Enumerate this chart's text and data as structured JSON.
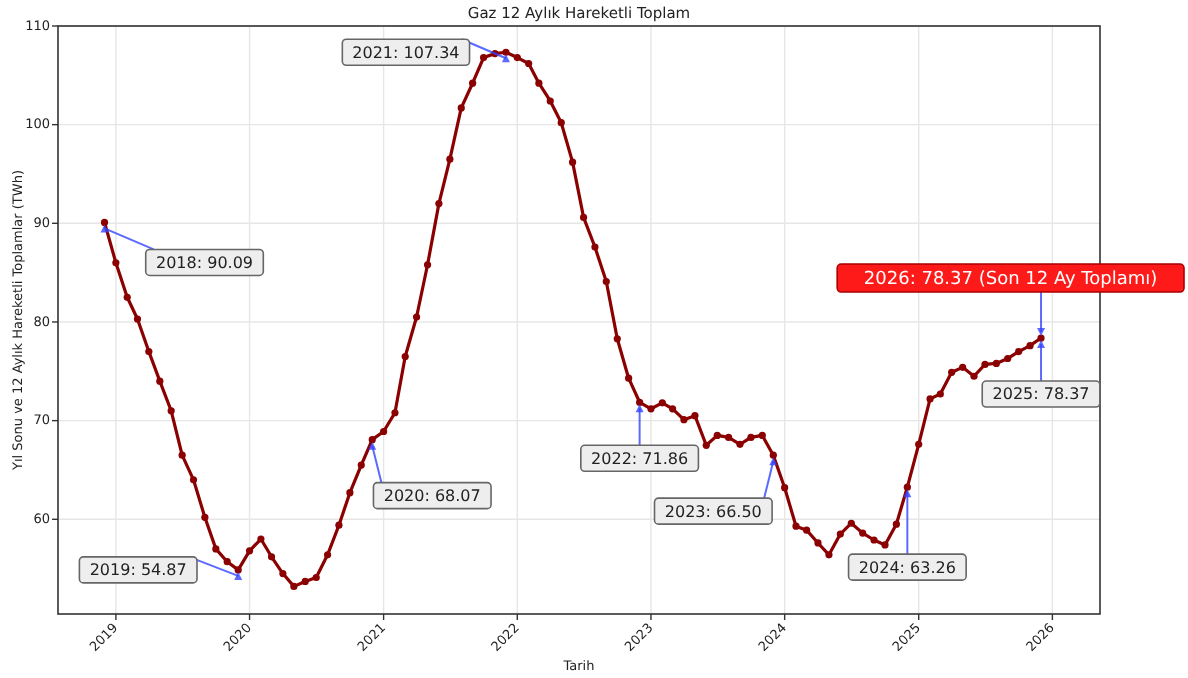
{
  "chart_data": {
    "type": "line",
    "title": "Gaz 12 Aylık Hareketli Toplam",
    "xlabel": "Tarih",
    "ylabel": "Yıl Sonu ve 12 Aylık Hareketli Toplamlar (TWh)",
    "x": [
      "2018-12",
      "2019-01",
      "2019-02",
      "2019-03",
      "2019-04",
      "2019-05",
      "2019-06",
      "2019-07",
      "2019-08",
      "2019-09",
      "2019-10",
      "2019-11",
      "2019-12",
      "2020-01",
      "2020-02",
      "2020-03",
      "2020-04",
      "2020-05",
      "2020-06",
      "2020-07",
      "2020-08",
      "2020-09",
      "2020-10",
      "2020-11",
      "2020-12",
      "2021-01",
      "2021-02",
      "2021-03",
      "2021-04",
      "2021-05",
      "2021-06",
      "2021-07",
      "2021-08",
      "2021-09",
      "2021-10",
      "2021-11",
      "2021-12",
      "2022-01",
      "2022-02",
      "2022-03",
      "2022-04",
      "2022-05",
      "2022-06",
      "2022-07",
      "2022-08",
      "2022-09",
      "2022-10",
      "2022-11",
      "2022-12",
      "2023-01",
      "2023-02",
      "2023-03",
      "2023-04",
      "2023-05",
      "2023-06",
      "2023-07",
      "2023-08",
      "2023-09",
      "2023-10",
      "2023-11",
      "2023-12",
      "2024-01",
      "2024-02",
      "2024-03",
      "2024-04",
      "2024-05",
      "2024-06",
      "2024-07",
      "2024-08",
      "2024-09",
      "2024-10",
      "2024-11",
      "2024-12",
      "2025-01",
      "2025-02",
      "2025-03",
      "2025-04",
      "2025-05",
      "2025-06",
      "2025-07",
      "2025-08",
      "2025-09",
      "2025-10",
      "2025-11",
      "2025-12"
    ],
    "series": [
      {
        "color": "#8b0000",
        "values": [
          90.09,
          86,
          82.5,
          80.3,
          77,
          74,
          71,
          66.5,
          64,
          60.2,
          57,
          55.7,
          54.87,
          56.8,
          58,
          56.2,
          54.5,
          53.2,
          53.7,
          54.1,
          56.4,
          59.4,
          62.7,
          65.5,
          68.07,
          68.9,
          70.8,
          76.5,
          80.5,
          85.8,
          92,
          96.5,
          101.7,
          104.2,
          106.8,
          107.2,
          107.34,
          106.8,
          106.2,
          104.2,
          102.4,
          100.2,
          96.2,
          90.6,
          87.6,
          84.1,
          78.3,
          74.3,
          71.86,
          71.2,
          71.8,
          71.2,
          70.1,
          70.5,
          67.5,
          68.5,
          68.3,
          67.6,
          68.3,
          68.5,
          66.5,
          63.2,
          59.3,
          58.9,
          57.6,
          56.4,
          58.5,
          59.6,
          58.6,
          57.9,
          57.4,
          59.5,
          63.26,
          67.6,
          72.2,
          72.7,
          74.9,
          75.4,
          74.5,
          75.7,
          75.8,
          76.3,
          77,
          77.6,
          78.37
        ]
      }
    ],
    "xlim": [
      "2018-07-27",
      "2026-05-11"
    ],
    "xticks": [
      "2019",
      "2020",
      "2021",
      "2022",
      "2023",
      "2024",
      "2025",
      "2026"
    ],
    "ylim": [
      50.4,
      110
    ],
    "yticks": [
      60,
      70,
      80,
      90,
      100,
      110
    ],
    "grid": true,
    "marker": "circle",
    "line_style": "solid",
    "annotations": [
      {
        "text": "2018: 90.09",
        "x": "2018-12",
        "y": 90.09
      },
      {
        "text": "2019: 54.87",
        "x": "2019-12",
        "y": 54.87
      },
      {
        "text": "2020: 68.07",
        "x": "2020-12",
        "y": 68.07
      },
      {
        "text": "2021: 107.34",
        "x": "2021-12",
        "y": 107.34
      },
      {
        "text": "2022: 71.86",
        "x": "2022-12",
        "y": 71.86
      },
      {
        "text": "2023: 66.50",
        "x": "2023-12",
        "y": 66.5
      },
      {
        "text": "2024: 63.26",
        "x": "2024-12",
        "y": 63.26
      },
      {
        "text": "2025: 78.37",
        "x": "2025-12",
        "y": 78.37
      },
      {
        "text": "2026: 78.37 (Son 12 Ay Toplamı)",
        "x": "2025-12",
        "y": 78.37
      }
    ]
  }
}
